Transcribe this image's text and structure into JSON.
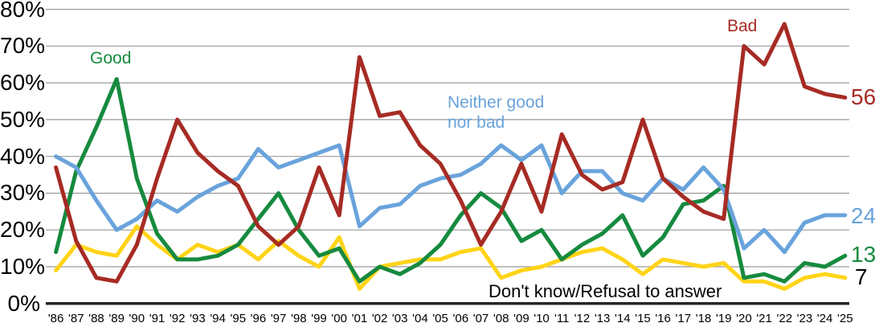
{
  "chart_data": {
    "type": "line",
    "title": "",
    "x_tick_labels": [
      "'86",
      "'87",
      "'88",
      "'89",
      "'90",
      "'91",
      "'92",
      "'93",
      "'94",
      "'95",
      "'96",
      "'97",
      "'98",
      "'99",
      "'00",
      "'01",
      "'02",
      "'03",
      "'04",
      "'05",
      "'06",
      "'07",
      "'08",
      "'09",
      "'10",
      "'11",
      "'12",
      "'13",
      "'14",
      "'15",
      "'16",
      "'17",
      "'18",
      "'19",
      "'20",
      "'21",
      "'22",
      "'23",
      "'24",
      "'25"
    ],
    "y_axis": {
      "tick_labels": [
        "0%",
        "10%",
        "20%",
        "30%",
        "40%",
        "50%",
        "60%",
        "70%",
        "80%"
      ],
      "min": 0,
      "max": 80,
      "grid": true,
      "gridline_color": "#999999",
      "axis_color": "#262626"
    },
    "legend_position": "inline-annotations",
    "series": [
      {
        "name": "Good",
        "color": "#168A3E",
        "end_label": "13",
        "values": [
          14,
          36,
          48,
          61,
          34,
          19,
          12,
          12,
          13,
          16,
          23,
          30,
          20,
          13,
          15,
          6,
          10,
          8,
          11,
          16,
          24,
          30,
          26,
          17,
          20,
          12,
          16,
          19,
          24,
          13,
          18,
          27,
          28,
          32,
          7,
          8,
          6,
          11,
          10,
          13
        ]
      },
      {
        "name": "Bad",
        "color": "#A62B24",
        "end_label": "56",
        "values": [
          37,
          17,
          7,
          6,
          16,
          34,
          50,
          41,
          36,
          32,
          21,
          16,
          21,
          37,
          24,
          67,
          51,
          52,
          43,
          38,
          28,
          16,
          25,
          38,
          25,
          46,
          35,
          31,
          33,
          50,
          34,
          29,
          25,
          23,
          70,
          65,
          76,
          59,
          57,
          56
        ]
      },
      {
        "name": "Neither good nor bad",
        "label_lines": [
          "Neither good",
          "nor bad"
        ],
        "color": "#69A3DC",
        "end_label": "24",
        "values": [
          40,
          37,
          28,
          20,
          23,
          28,
          25,
          29,
          32,
          34,
          42,
          37,
          39,
          41,
          43,
          21,
          26,
          27,
          32,
          34,
          35,
          38,
          43,
          39,
          43,
          30,
          36,
          36,
          30,
          28,
          34,
          31,
          37,
          31,
          15,
          20,
          14,
          22,
          24,
          24
        ]
      },
      {
        "name": "Don't know/Refusal to answer",
        "color": "#FFD417",
        "end_label": "7",
        "end_label_color": "#000000",
        "values": [
          9,
          16,
          14,
          13,
          21,
          16,
          12,
          16,
          14,
          16,
          12,
          17,
          13,
          10,
          18,
          4,
          10,
          11,
          12,
          12,
          14,
          15,
          7,
          9,
          10,
          12,
          14,
          15,
          12,
          8,
          12,
          11,
          10,
          11,
          6,
          6,
          4,
          7,
          8,
          7
        ]
      }
    ]
  }
}
